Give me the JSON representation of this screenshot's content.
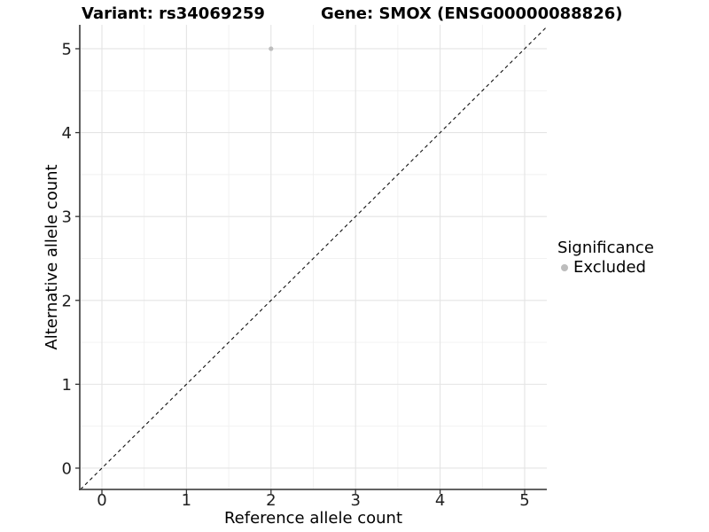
{
  "chart_data": {
    "type": "scatter",
    "titles": {
      "left": "Variant: rs34069259",
      "right": "Gene: SMOX (ENSG00000088826)"
    },
    "xlabel": "Reference allele count",
    "ylabel": "Alternative allele count",
    "xlim": [
      -0.262,
      5.262
    ],
    "ylim": [
      -0.254,
      5.285
    ],
    "xticks": [
      0,
      1,
      2,
      3,
      4,
      5
    ],
    "yticks": [
      0,
      1,
      2,
      3,
      4,
      5
    ],
    "xminor": [
      0.5,
      1.5,
      2.5,
      3.5,
      4.5
    ],
    "yminor": [
      0.5,
      1.5,
      2.5,
      3.5,
      4.5
    ],
    "grid": true,
    "series": [
      {
        "name": "Excluded",
        "color": "#bdbdbd",
        "marker": "circle",
        "points": [
          {
            "x": 2,
            "y": 5
          }
        ]
      }
    ],
    "reference_line": {
      "type": "identity y=x",
      "style": "dashed",
      "color": "#111111"
    },
    "legend": {
      "title": "Significance",
      "position": "right",
      "items": [
        {
          "label": "Excluded",
          "color": "#bdbdbd",
          "marker": "circle"
        }
      ]
    },
    "colors": {
      "background": "#ffffff",
      "grid_major": "#e4e4e4",
      "grid_minor": "#f0f0f0",
      "axis_line": "#4d4d4d",
      "tick_mark": "#333333",
      "tick_label": "#1f1f1f"
    }
  }
}
